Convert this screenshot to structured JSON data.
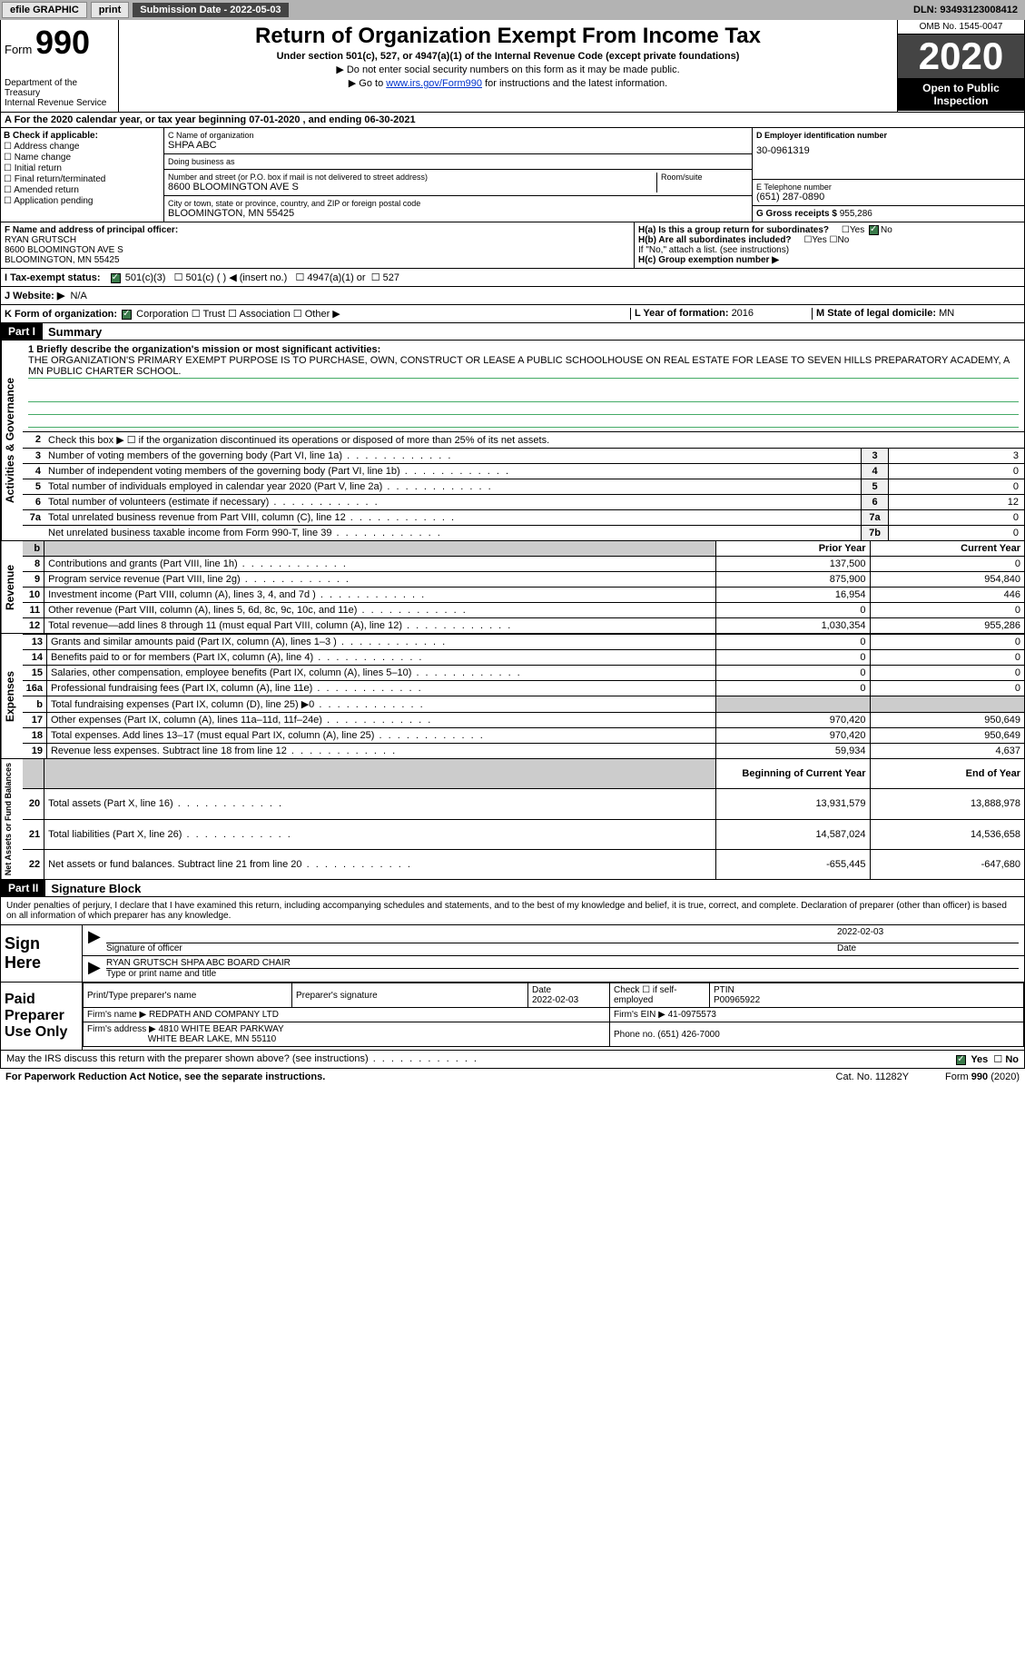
{
  "topbar": {
    "efile": "efile GRAPHIC",
    "print": "print",
    "sub_label": "Submission Date - ",
    "sub_date": "2022-05-03",
    "dln_label": "DLN: ",
    "dln": "93493123008412"
  },
  "header": {
    "form_label": "Form",
    "form_no": "990",
    "dept1": "Department of the Treasury",
    "dept2": "Internal Revenue Service",
    "title": "Return of Organization Exempt From Income Tax",
    "subtitle": "Under section 501(c), 527, or 4947(a)(1) of the Internal Revenue Code (except private foundations)",
    "note1": "▶ Do not enter social security numbers on this form as it may be made public.",
    "note2_pre": "▶ Go to ",
    "note2_link": "www.irs.gov/Form990",
    "note2_post": " for instructions and the latest information.",
    "omb": "OMB No. 1545-0047",
    "year": "2020",
    "open": "Open to Public Inspection"
  },
  "lineA": "A For the 2020 calendar year, or tax year beginning 07-01-2020   , and ending 06-30-2021",
  "boxB": {
    "title": "B Check if applicable:",
    "opts": [
      "Address change",
      "Name change",
      "Initial return",
      "Final return/terminated",
      "Amended return",
      "Application pending"
    ]
  },
  "boxC": {
    "name_lbl": "C Name of organization",
    "name": "SHPA ABC",
    "dba_lbl": "Doing business as",
    "addr_lbl": "Number and street (or P.O. box if mail is not delivered to street address)",
    "room_lbl": "Room/suite",
    "addr": "8600 BLOOMINGTON AVE S",
    "city_lbl": "City or town, state or province, country, and ZIP or foreign postal code",
    "city": "BLOOMINGTON, MN  55425"
  },
  "boxD": {
    "lbl": "D Employer identification number",
    "val": "30-0961319"
  },
  "boxE": {
    "lbl": "E Telephone number",
    "val": "(651) 287-0890"
  },
  "boxG": {
    "lbl": "G Gross receipts $ ",
    "val": "955,286"
  },
  "boxF": {
    "lbl": "F Name and address of principal officer:",
    "name": "RYAN GRUTSCH",
    "addr1": "8600 BLOOMINGTON AVE S",
    "addr2": "BLOOMINGTON, MN  55425"
  },
  "boxH": {
    "ha": "H(a)  Is this a group return for subordinates?",
    "hb": "H(b)  Are all subordinates included?",
    "hnote": "If \"No,\" attach a list. (see instructions)",
    "hc": "H(c)  Group exemption number ▶",
    "yes": "Yes",
    "no": "No"
  },
  "taxStatus": {
    "lbl": "I   Tax-exempt status:",
    "o1": "501(c)(3)",
    "o2": "501(c) (   ) ◀ (insert no.)",
    "o3": "4947(a)(1) or",
    "o4": "527"
  },
  "website": {
    "lbl": "J   Website: ▶",
    "val": "N/A"
  },
  "lineK": {
    "lbl": "K Form of organization:",
    "o1": "Corporation",
    "o2": "Trust",
    "o3": "Association",
    "o4": "Other ▶",
    "year_lbl": "L Year of formation: ",
    "year": "2016",
    "state_lbl": "M State of legal domicile: ",
    "state": "MN"
  },
  "part1": {
    "label": "Part I",
    "title": "Summary",
    "side_ag": "Activities & Governance",
    "side_rev": "Revenue",
    "side_exp": "Expenses",
    "side_na": "Net Assets or Fund Balances",
    "q1_lbl": "1   Briefly describe the organization's mission or most significant activities:",
    "q1_text": "THE ORGANIZATION'S PRIMARY EXEMPT PURPOSE IS TO PURCHASE, OWN, CONSTRUCT OR LEASE A PUBLIC SCHOOLHOUSE ON REAL ESTATE FOR LEASE TO SEVEN HILLS PREPARATORY ACADEMY, A MN PUBLIC CHARTER SCHOOL.",
    "q2": "Check this box ▶ ☐  if the organization discontinued its operations or disposed of more than 25% of its net assets.",
    "rows_ag": [
      {
        "n": "3",
        "d": "Number of voting members of the governing body (Part VI, line 1a)",
        "box": "3",
        "v": "3"
      },
      {
        "n": "4",
        "d": "Number of independent voting members of the governing body (Part VI, line 1b)",
        "box": "4",
        "v": "0"
      },
      {
        "n": "5",
        "d": "Total number of individuals employed in calendar year 2020 (Part V, line 2a)",
        "box": "5",
        "v": "0"
      },
      {
        "n": "6",
        "d": "Total number of volunteers (estimate if necessary)",
        "box": "6",
        "v": "12"
      },
      {
        "n": "7a",
        "d": "Total unrelated business revenue from Part VIII, column (C), line 12",
        "box": "7a",
        "v": "0"
      },
      {
        "n": "",
        "d": "Net unrelated business taxable income from Form 990-T, line 39",
        "box": "7b",
        "v": "0"
      }
    ],
    "col_prior": "Prior Year",
    "col_curr": "Current Year",
    "rows_rev": [
      {
        "n": "8",
        "d": "Contributions and grants (Part VIII, line 1h)",
        "p": "137,500",
        "c": "0"
      },
      {
        "n": "9",
        "d": "Program service revenue (Part VIII, line 2g)",
        "p": "875,900",
        "c": "954,840"
      },
      {
        "n": "10",
        "d": "Investment income (Part VIII, column (A), lines 3, 4, and 7d )",
        "p": "16,954",
        "c": "446"
      },
      {
        "n": "11",
        "d": "Other revenue (Part VIII, column (A), lines 5, 6d, 8c, 9c, 10c, and 11e)",
        "p": "0",
        "c": "0"
      },
      {
        "n": "12",
        "d": "Total revenue—add lines 8 through 11 (must equal Part VIII, column (A), line 12)",
        "p": "1,030,354",
        "c": "955,286"
      }
    ],
    "rows_exp": [
      {
        "n": "13",
        "d": "Grants and similar amounts paid (Part IX, column (A), lines 1–3 )",
        "p": "0",
        "c": "0"
      },
      {
        "n": "14",
        "d": "Benefits paid to or for members (Part IX, column (A), line 4)",
        "p": "0",
        "c": "0"
      },
      {
        "n": "15",
        "d": "Salaries, other compensation, employee benefits (Part IX, column (A), lines 5–10)",
        "p": "0",
        "c": "0"
      },
      {
        "n": "16a",
        "d": "Professional fundraising fees (Part IX, column (A), line 11e)",
        "p": "0",
        "c": "0"
      },
      {
        "n": "b",
        "d": "Total fundraising expenses (Part IX, column (D), line 25) ▶0",
        "p": "",
        "c": "",
        "shade": true
      },
      {
        "n": "17",
        "d": "Other expenses (Part IX, column (A), lines 11a–11d, 11f–24e)",
        "p": "970,420",
        "c": "950,649"
      },
      {
        "n": "18",
        "d": "Total expenses. Add lines 13–17 (must equal Part IX, column (A), line 25)",
        "p": "970,420",
        "c": "950,649"
      },
      {
        "n": "19",
        "d": "Revenue less expenses. Subtract line 18 from line 12",
        "p": "59,934",
        "c": "4,637"
      }
    ],
    "col_beg": "Beginning of Current Year",
    "col_end": "End of Year",
    "rows_na": [
      {
        "n": "20",
        "d": "Total assets (Part X, line 16)",
        "p": "13,931,579",
        "c": "13,888,978"
      },
      {
        "n": "21",
        "d": "Total liabilities (Part X, line 26)",
        "p": "14,587,024",
        "c": "14,536,658"
      },
      {
        "n": "22",
        "d": "Net assets or fund balances. Subtract line 21 from line 20",
        "p": "-655,445",
        "c": "-647,680"
      }
    ]
  },
  "part2": {
    "label": "Part II",
    "title": "Signature Block",
    "intro": "Under penalties of perjury, I declare that I have examined this return, including accompanying schedules and statements, and to the best of my knowledge and belief, it is true, correct, and complete. Declaration of preparer (other than officer) is based on all information of which preparer has any knowledge.",
    "sign_here": "Sign Here",
    "sig_officer_lbl": "Signature of officer",
    "sig_date": "2022-02-03",
    "date_lbl": "Date",
    "officer_name": "RYAN GRUTSCH  SHPA ABC BOARD CHAIR",
    "officer_name_lbl": "Type or print name and title",
    "paid": "Paid Preparer Use Only",
    "prep_name_lbl": "Print/Type preparer's name",
    "prep_sig_lbl": "Preparer's signature",
    "prep_date_lbl": "Date",
    "prep_date": "2022-02-03",
    "check_lbl": "Check ☐ if self-employed",
    "ptin_lbl": "PTIN",
    "ptin": "P00965922",
    "firm_name_lbl": "Firm's name   ▶ ",
    "firm_name": "REDPATH AND COMPANY LTD",
    "firm_ein_lbl": "Firm's EIN ▶ ",
    "firm_ein": "41-0975573",
    "firm_addr_lbl": "Firm's address ▶ ",
    "firm_addr1": "4810 WHITE BEAR PARKWAY",
    "firm_addr2": "WHITE BEAR LAKE, MN  55110",
    "phone_lbl": "Phone no. ",
    "phone": "(651) 426-7000"
  },
  "discuss": {
    "q": "May the IRS discuss this return with the preparer shown above? (see instructions)",
    "yes": "Yes",
    "no": "No"
  },
  "footer": {
    "pra": "For Paperwork Reduction Act Notice, see the separate instructions.",
    "cat": "Cat. No. 11282Y",
    "form": "Form 990 (2020)"
  }
}
